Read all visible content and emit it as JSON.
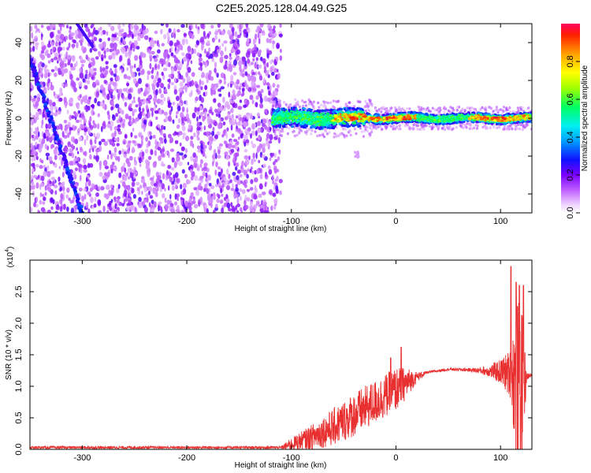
{
  "title": "C2E5.2025.128.04.49.G25",
  "top": {
    "xlabel": "Height of straight line (km)",
    "ylabel": "Frequency (Hz)",
    "xlim": [
      -350,
      130
    ],
    "ylim": [
      -50,
      50
    ],
    "xticks": [
      "-300",
      "-200",
      "-100",
      "0",
      "100"
    ],
    "yticks": [
      "40",
      "20",
      "0",
      "-20",
      "-40"
    ]
  },
  "colorbar": {
    "label": "Normalized spectral amplitude",
    "range": [
      0.0,
      1.0
    ],
    "ticks": [
      "0.8",
      "0.6",
      "0.4",
      "0.2",
      "0.0"
    ]
  },
  "bottom": {
    "xlabel": "Height of straight line (km)",
    "ylabel": "SNR (10 * v/v)",
    "multiplier": "(x10",
    "multiplier_exp": "4",
    "multiplier_close": ")",
    "xticks": [
      "-300",
      "-200",
      "-100",
      "0",
      "100"
    ],
    "yticks": [
      "2.5",
      "2.0",
      "1.5",
      "1.0",
      "0.5",
      "0.0"
    ]
  },
  "chart_data": [
    {
      "type": "heatmap",
      "xlim": [
        -350,
        130
      ],
      "ylim": [
        -50,
        50
      ],
      "features": {
        "scatter_region_x": [
          -350,
          -110
        ],
        "diagonal_streak": {
          "from": [
            -360,
            48
          ],
          "to": [
            -300,
            -50
          ]
        },
        "second_streak": {
          "from": [
            -305,
            50
          ],
          "to": [
            -290,
            38
          ]
        },
        "band_center_freq_hz": 0,
        "band_x": [
          -118,
          130
        ]
      }
    },
    {
      "type": "line",
      "xlim": [
        -350,
        130
      ],
      "ylim": [
        0,
        3.0
      ],
      "color": "#e83030",
      "profile_x": [
        -350,
        -110,
        -100,
        -80,
        -60,
        -40,
        -20,
        0,
        10,
        20,
        30,
        50,
        70,
        80,
        90,
        100,
        110,
        115,
        120,
        125,
        130
      ],
      "profile_y": [
        0.03,
        0.03,
        0.08,
        0.2,
        0.35,
        0.55,
        0.75,
        0.95,
        1.05,
        1.15,
        1.22,
        1.27,
        1.26,
        1.25,
        1.24,
        1.23,
        1.2,
        1.05,
        0.9,
        1.15,
        1.18
      ],
      "noise_y": [
        0.02,
        0.02,
        0.1,
        0.2,
        0.3,
        0.35,
        0.35,
        0.35,
        0.25,
        0.08,
        0.02,
        0.02,
        0.03,
        0.05,
        0.1,
        0.2,
        0.4,
        1.3,
        1.5,
        0.05,
        0.03
      ],
      "peaks": [
        [
          5,
          1.62
        ],
        [
          -5,
          1.45
        ],
        [
          110,
          2.9
        ],
        [
          115,
          2.65
        ],
        [
          118,
          2.6
        ],
        [
          122,
          2.6
        ]
      ]
    }
  ]
}
